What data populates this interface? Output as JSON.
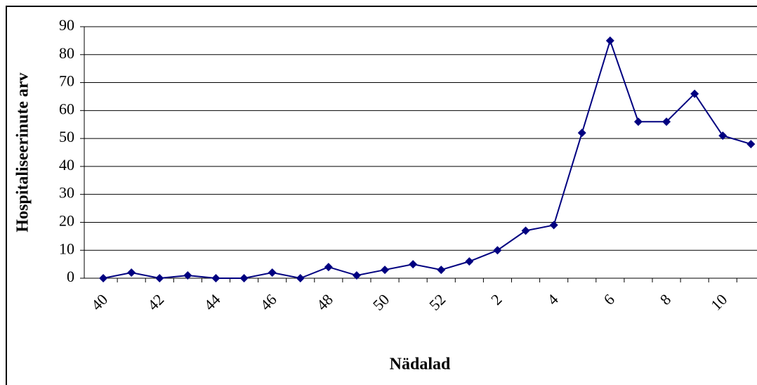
{
  "chart_data": {
    "type": "line",
    "x_label": "Nädalad",
    "y_label": "Hospitaliseerinute arv",
    "categories": [
      "40",
      null,
      "42",
      null,
      "44",
      null,
      "46",
      null,
      "48",
      null,
      "50",
      null,
      "52",
      null,
      "2",
      null,
      "4",
      null,
      "6",
      null,
      "8",
      null,
      "10",
      null
    ],
    "series": [
      {
        "name": null,
        "color": "#000080",
        "values": [
          0,
          2,
          0,
          1,
          0,
          0,
          2,
          0,
          4,
          1,
          3,
          5,
          3,
          6,
          10,
          17,
          19,
          52,
          85,
          56,
          56,
          66,
          51,
          48
        ]
      }
    ],
    "ylim": [
      0,
      90
    ],
    "yticks": [
      0,
      10,
      20,
      30,
      40,
      50,
      60,
      70,
      80,
      90
    ],
    "grid": true
  }
}
